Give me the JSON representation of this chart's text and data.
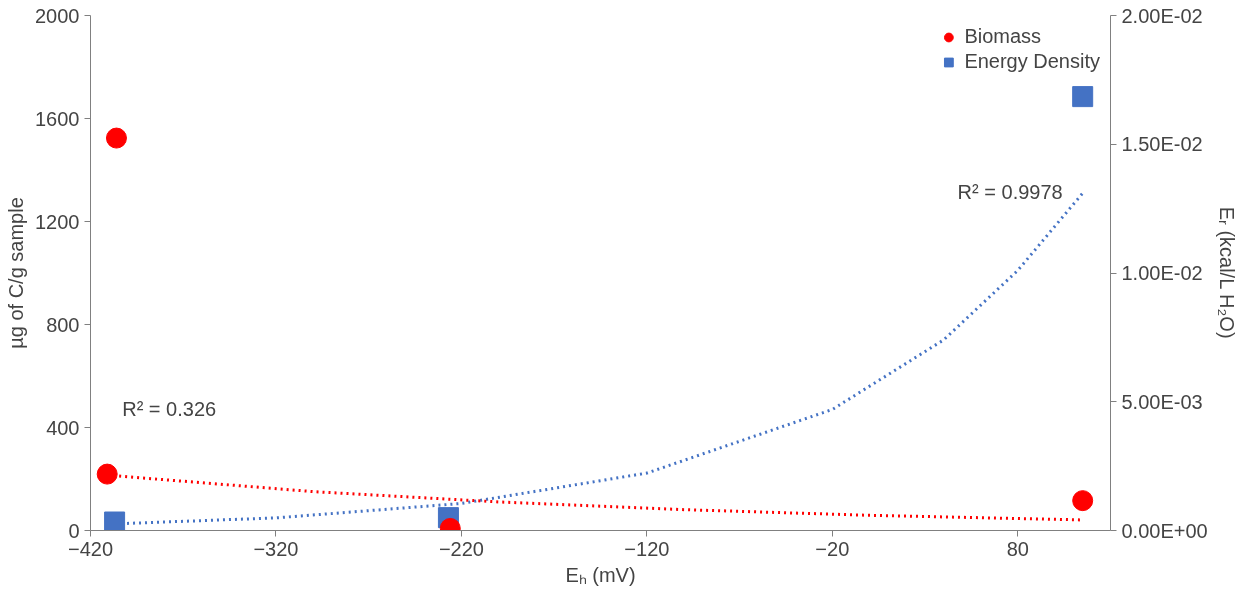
{
  "chart_data": {
    "type": "scatter",
    "xlabel": "Eₕ (mV)",
    "ylabel": "µg of C/g sample",
    "y2label": "Eᵣ (kcal/L H₂O)",
    "xlim": [
      -420,
      130
    ],
    "xticks": [
      -420,
      -320,
      -220,
      -120,
      -20,
      80
    ],
    "ylim": [
      0,
      2000
    ],
    "yticks": [
      0,
      400,
      800,
      1200,
      1600,
      2000
    ],
    "y2lim": [
      0,
      0.02
    ],
    "y2ticks": [
      {
        "value": 0,
        "label": "0.00E+00"
      },
      {
        "value": 0.005,
        "label": "5.00E-03"
      },
      {
        "value": 0.01,
        "label": "1.00E-02"
      },
      {
        "value": 0.015,
        "label": "1.50E-02"
      },
      {
        "value": 0.02,
        "label": "2.00E-02"
      }
    ],
    "grid": false,
    "legend": "top right",
    "series": [
      {
        "name": "Biomass",
        "marker": "circle",
        "color": "#ff0000",
        "x": [
          -406,
          -411,
          -226,
          115
        ],
        "values": [
          1524,
          219,
          8,
          116
        ]
      },
      {
        "name": "Energy Density",
        "marker": "square",
        "color": "#4472c4",
        "axis": "y2",
        "x": [
          -407,
          -227,
          115
        ],
        "values": [
          0.00033,
          0.0005,
          0.01685
        ]
      },
      {
        "type": "line",
        "line_style": "dotted",
        "color": "#ff0000",
        "x": [
          -411,
          -300,
          -200,
          -100,
          0,
          115
        ],
        "values": [
          215,
          151,
          111,
          81,
          59,
          41
        ]
      },
      {
        "type": "line",
        "line_style": "dotted",
        "color": "#4472c4",
        "axis": "y2",
        "x": [
          -410,
          -320,
          -220,
          -120,
          -20,
          40,
          80,
          115
        ],
        "values": [
          0.00025,
          0.00049,
          0.00105,
          0.00223,
          0.0047,
          0.0074,
          0.0101,
          0.0131
        ]
      }
    ],
    "annotations": [
      "R² = 0.326",
      "R² = 0.9978"
    ]
  }
}
